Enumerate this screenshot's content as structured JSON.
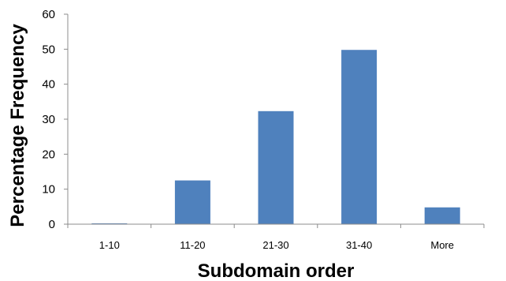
{
  "chart_data": {
    "type": "bar",
    "title": "",
    "xlabel": "Subdomain order",
    "ylabel": "Percentage Frequency",
    "categories": [
      "1-10",
      "11-20",
      "21-30",
      "31-40",
      "More"
    ],
    "values": [
      0.2,
      12.5,
      32.3,
      49.8,
      4.8
    ],
    "ylim": [
      0,
      60
    ],
    "yticks": [
      0,
      10,
      20,
      30,
      40,
      50,
      60
    ],
    "grid": false,
    "legend": "none",
    "bar_color": "#4F81BD"
  }
}
